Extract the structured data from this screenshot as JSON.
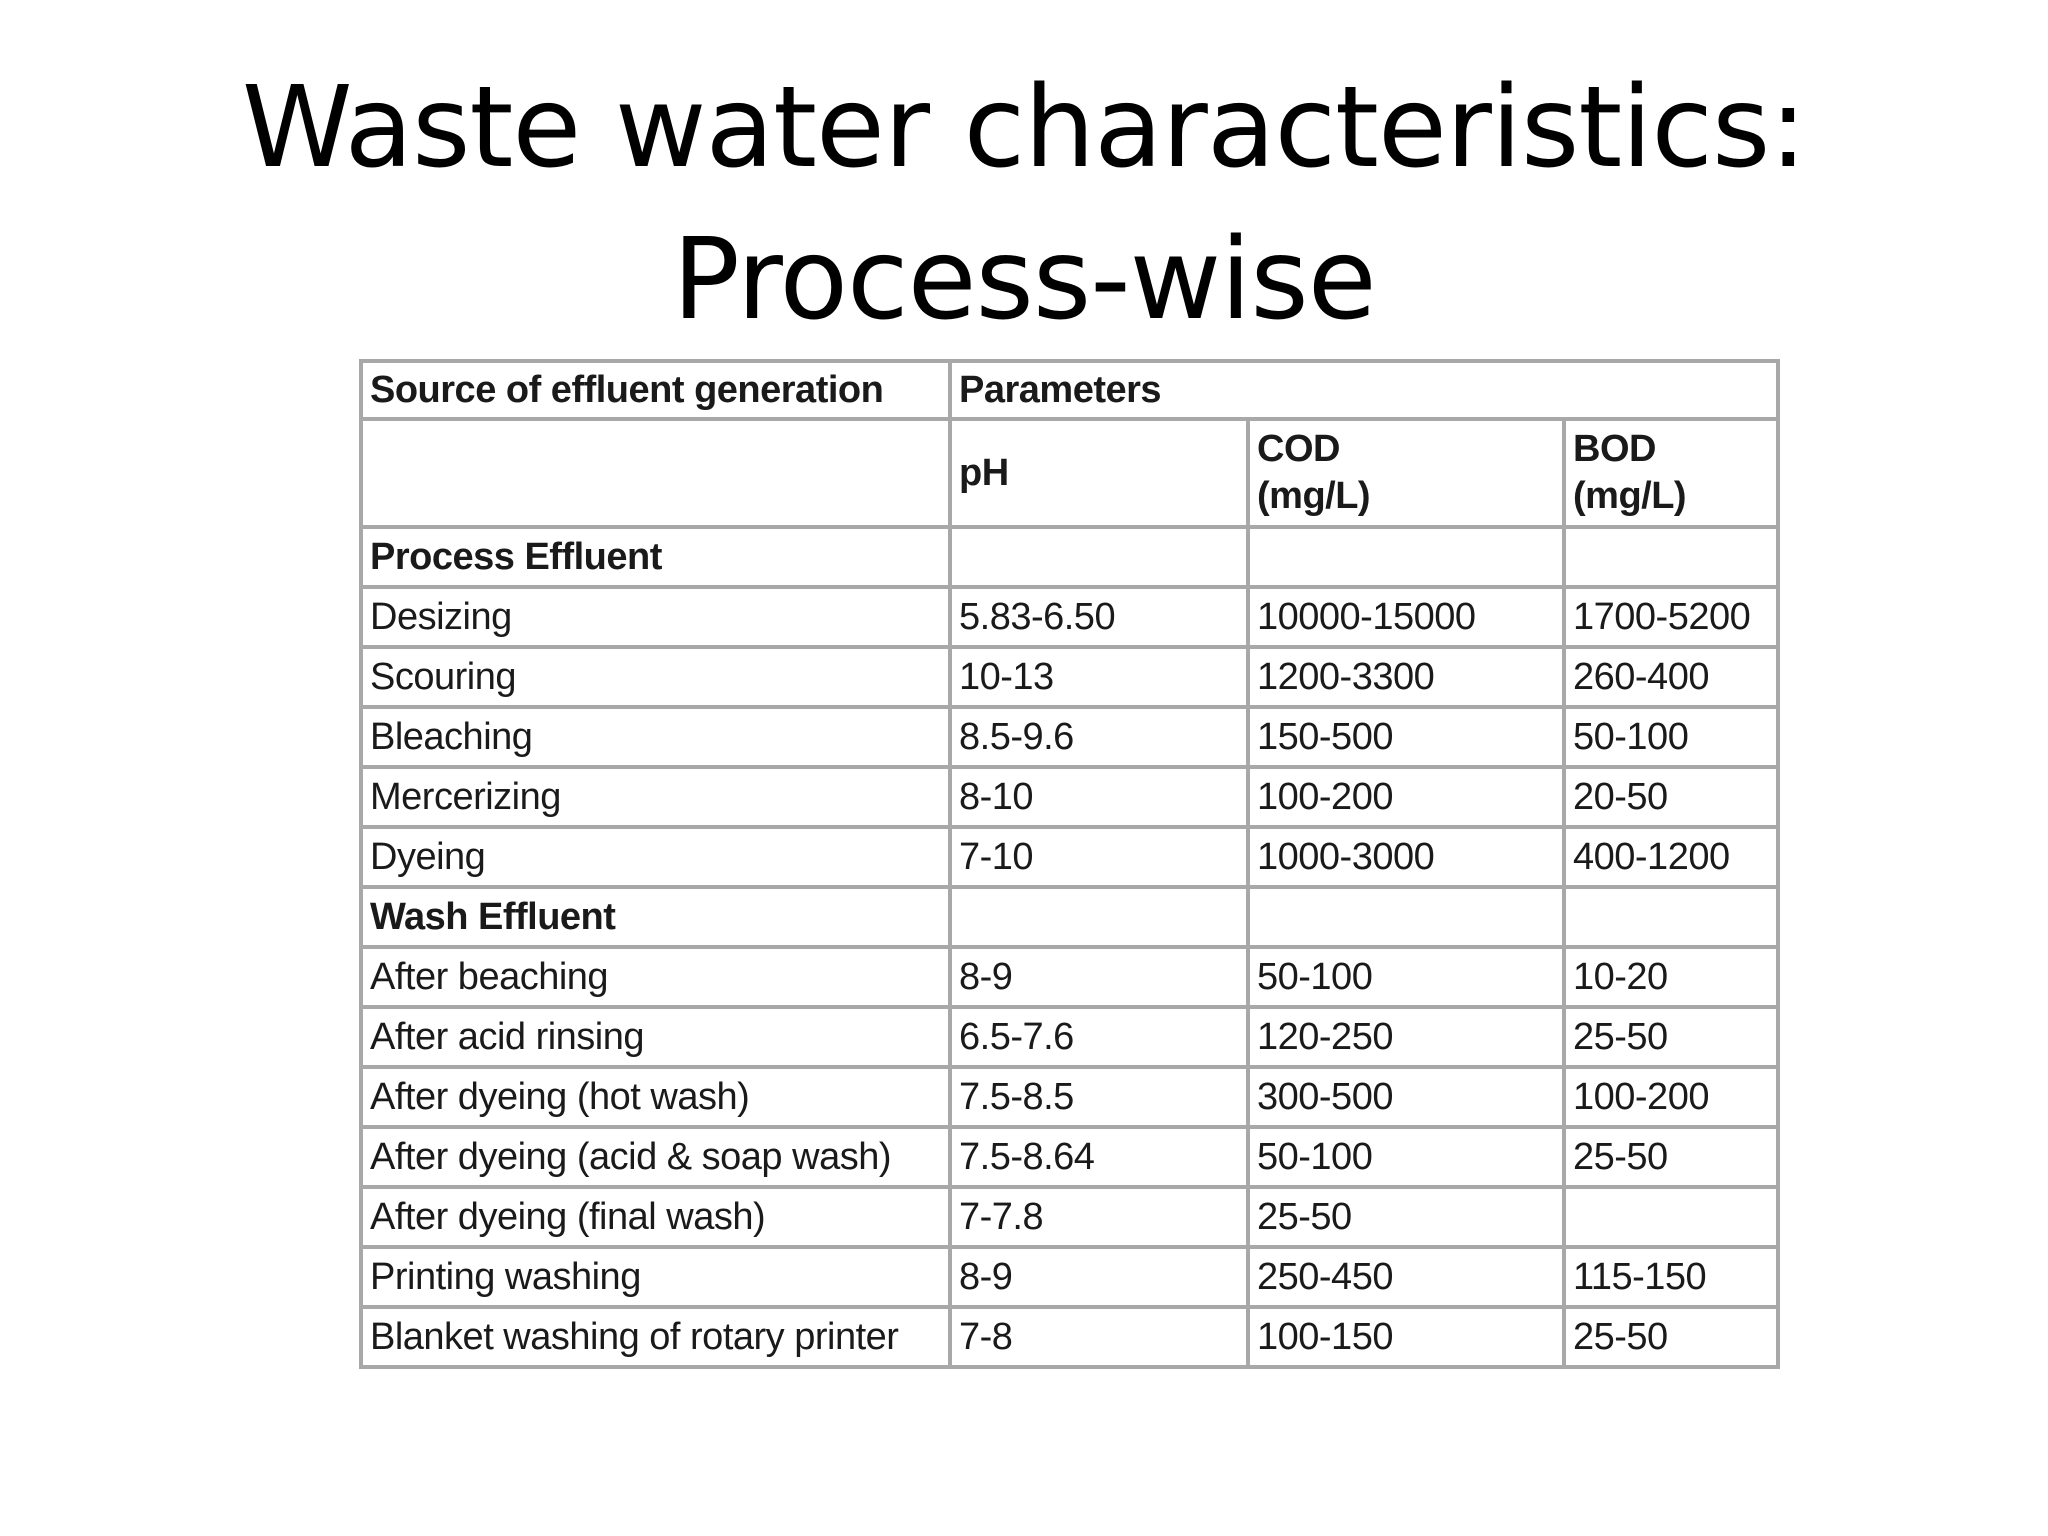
{
  "slide": {
    "title_line1": "Waste water characteristics:",
    "title_line2": "Process-wise"
  },
  "table": {
    "header": {
      "source_label": "Source of effluent generation",
      "parameters_label": "Parameters",
      "ph_label": "pH",
      "cod_label_line1": "COD",
      "cod_label_line2": "(mg/L)",
      "bod_label_line1": "BOD",
      "bod_label_line2": "(mg/L)"
    },
    "rows": [
      {
        "source": "Process Effluent",
        "ph": "",
        "cod": "",
        "bod": "",
        "section": true
      },
      {
        "source": "Desizing",
        "ph": "5.83-6.50",
        "cod": "10000-15000",
        "bod": "1700-5200"
      },
      {
        "source": "Scouring",
        "ph": "10-13",
        "cod": "1200-3300",
        "bod": "260-400"
      },
      {
        "source": "Bleaching",
        "ph": "8.5-9.6",
        "cod": "150-500",
        "bod": "50-100"
      },
      {
        "source": "Mercerizing",
        "ph": "8-10",
        "cod": "100-200",
        "bod": "20-50"
      },
      {
        "source": "Dyeing",
        "ph": "7-10",
        "cod": "1000-3000",
        "bod": "400-1200"
      },
      {
        "source": "Wash Effluent",
        "ph": "",
        "cod": "",
        "bod": "",
        "section": true
      },
      {
        "source": "After beaching",
        "ph": "8-9",
        "cod": "50-100",
        "bod": "10-20"
      },
      {
        "source": "After acid rinsing",
        "ph": "6.5-7.6",
        "cod": "120-250",
        "bod": "25-50"
      },
      {
        "source": "After dyeing (hot wash)",
        "ph": "7.5-8.5",
        "cod": "300-500",
        "bod": "100-200"
      },
      {
        "source": "After dyeing (acid & soap wash)",
        "ph": "7.5-8.64",
        "cod": "50-100",
        "bod": "25-50"
      },
      {
        "source": "After dyeing (final wash)",
        "ph": "7-7.8",
        "cod": "25-50",
        "bod": ""
      },
      {
        "source": "Printing washing",
        "ph": "8-9",
        "cod": "250-450",
        "bod": "115-150"
      },
      {
        "source": "Blanket washing of rotary printer",
        "ph": "7-8",
        "cod": "100-150",
        "bod": "25-50"
      }
    ]
  }
}
